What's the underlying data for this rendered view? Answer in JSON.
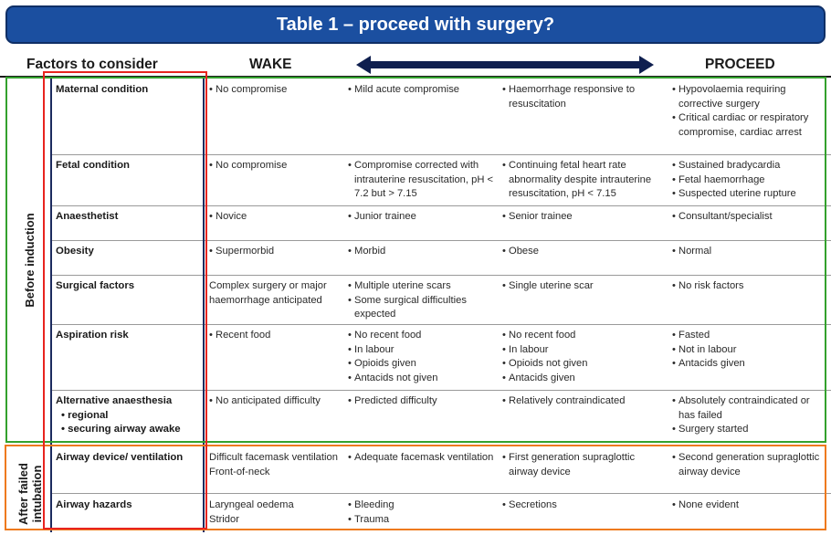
{
  "title": "Table 1 – proceed with surgery?",
  "headers": {
    "factors": "Factors to consider",
    "wake": "WAKE",
    "proceed": "PROCEED"
  },
  "sections": {
    "before": "Before induction",
    "after_line1": "After failed",
    "after_line2": "intubation"
  },
  "rows": [
    {
      "factor": "Maternal condition",
      "cols": [
        [
          "No compromise"
        ],
        [
          "Mild acute compromise"
        ],
        [
          "Haemorrhage responsive to resuscitation"
        ],
        [
          "Hypovolaemia requiring corrective surgery",
          "Critical cardiac or respiratory compromise, cardiac arrest"
        ]
      ]
    },
    {
      "factor": "Fetal condition",
      "cols": [
        [
          "No compromise"
        ],
        [
          "Compromise corrected with intrauterine resuscitation, pH < 7.2 but > 7.15"
        ],
        [
          "Continuing fetal heart rate abnormality despite intrauterine resuscitation, pH < 7.15"
        ],
        [
          "Sustained bradycardia",
          "Fetal haemorrhage",
          "Suspected uterine rupture"
        ]
      ]
    },
    {
      "factor": "Anaesthetist",
      "cols": [
        [
          "Novice"
        ],
        [
          "Junior trainee"
        ],
        [
          "Senior trainee"
        ],
        [
          "Consultant/specialist"
        ]
      ]
    },
    {
      "factor": "Obesity",
      "cols": [
        [
          "Supermorbid"
        ],
        [
          "Morbid"
        ],
        [
          "Obese"
        ],
        [
          "Normal"
        ]
      ]
    },
    {
      "factor": "Surgical factors",
      "cols": [
        [
          "Complex surgery or major haemorrhage anticipated"
        ],
        [
          "Multiple uterine scars",
          "Some surgical difficulties expected"
        ],
        [
          "Single uterine scar"
        ],
        [
          "No risk factors"
        ]
      ]
    },
    {
      "factor": "Aspiration risk",
      "cols": [
        [
          "Recent food"
        ],
        [
          "No recent food",
          "In labour",
          "Opioids given",
          "Antacids not given"
        ],
        [
          "No recent food",
          "In labour",
          "Opioids not given",
          "Antacids given"
        ],
        [
          "Fasted",
          "Not in labour",
          "Antacids given"
        ]
      ]
    },
    {
      "factor": "Alternative anaesthesia",
      "factor_subs": [
        "regional",
        "securing airway awake"
      ],
      "cols": [
        [
          "No anticipated difficulty"
        ],
        [
          "Predicted difficulty"
        ],
        [
          "Relatively contraindicated"
        ],
        [
          "Absolutely contraindicated or has failed",
          "Surgery started"
        ]
      ]
    },
    {
      "factor": "Airway device/ ventilation",
      "cols": [
        [
          "Difficult facemask ventilation",
          "Front-of-neck"
        ],
        [
          "Adequate facemask ventilation"
        ],
        [
          "First generation supraglottic airway device"
        ],
        [
          "Second generation supraglottic airway device"
        ]
      ]
    },
    {
      "factor": "Airway hazards",
      "cols": [
        [
          "Laryngeal oedema",
          "Stridor"
        ],
        [
          "Bleeding",
          "Trauma"
        ],
        [
          "Secretions"
        ],
        [
          "None evident"
        ]
      ]
    }
  ]
}
